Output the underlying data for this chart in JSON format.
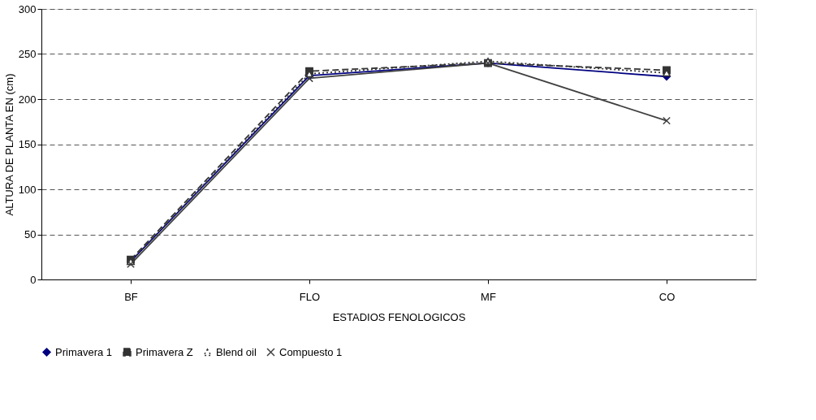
{
  "chart_data": {
    "type": "line",
    "xlabel": "ESTADIOS FENOLOGICOS",
    "ylabel": "ALTURA DE PLANTA EN (cm)",
    "categories": [
      "BF",
      "FLO",
      "MF",
      "CO"
    ],
    "ylim": [
      0,
      300
    ],
    "yticks": [
      0,
      50,
      100,
      150,
      200,
      250,
      300
    ],
    "grid": "y",
    "legend": "bottom",
    "series": [
      {
        "name": "Primavera 1",
        "color": "#000080",
        "marker": "diamond",
        "line_style": "solid",
        "values": [
          20,
          226,
          240,
          225
        ]
      },
      {
        "name": "Primavera Z",
        "color": "#333333",
        "marker": "square",
        "line_style": "dashed",
        "values": [
          22,
          231,
          240,
          232
        ]
      },
      {
        "name": "Blend oil",
        "color": "#333333",
        "marker": "triangle",
        "line_style": "dotted",
        "values": [
          20,
          228,
          242,
          229
        ]
      },
      {
        "name": "Compuesto 1",
        "color": "#404040",
        "marker": "cross",
        "line_style": "solid",
        "values": [
          17,
          223,
          240,
          176
        ]
      }
    ]
  }
}
